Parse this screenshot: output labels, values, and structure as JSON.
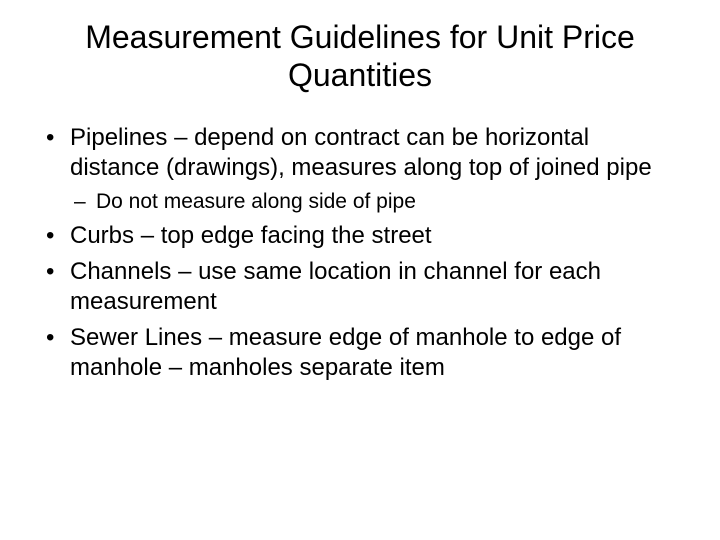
{
  "slide": {
    "title": "Measurement Guidelines for Unit Price Quantities",
    "bullets": [
      {
        "text": "Pipelines – depend on contract can be horizontal distance (drawings), measures along top of joined pipe",
        "sub": [
          {
            "text": "Do not measure along side of pipe"
          }
        ]
      },
      {
        "text": "Curbs – top edge facing the street"
      },
      {
        "text": "Channels – use same location in channel for each measurement"
      },
      {
        "text": "Sewer Lines – measure edge of manhole to edge of manhole – manholes separate item"
      }
    ]
  },
  "style": {
    "background_color": "#ffffff",
    "text_color": "#000000",
    "font_family": "Arial",
    "title_fontsize": 32,
    "body_fontsize": 24,
    "sub_fontsize": 21
  }
}
